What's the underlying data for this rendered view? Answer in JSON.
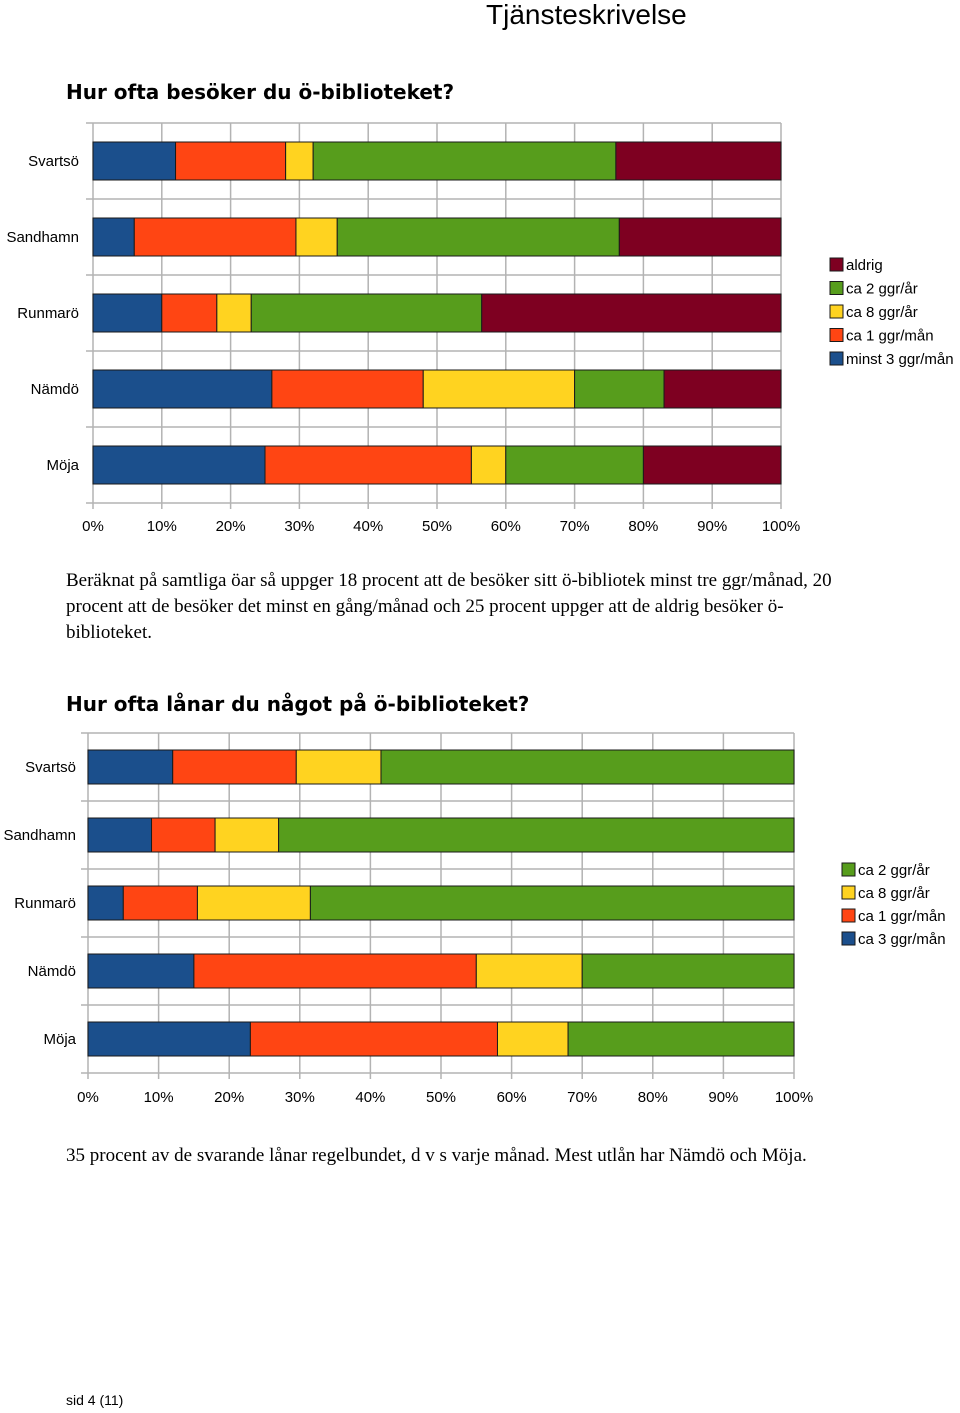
{
  "header": {
    "title": "Tjänsteskrivelse"
  },
  "section1": {
    "heading": "Hur ofta besöker du ö-biblioteket?",
    "paragraph": "Beräknat på samtliga öar så uppger 18 procent att de besöker sitt ö-bibliotek minst tre ggr/månad, 20 procent att de besöker det minst en gång/månad och 25 procent uppger att de aldrig besöker ö-biblioteket."
  },
  "section2": {
    "heading": "Hur ofta lånar du något på ö-biblioteket?",
    "paragraph": "35 procent av de svarande lånar regelbundet, d v s varje månad. Mest utlån har Nämdö och Möja."
  },
  "footer": {
    "page": "sid  4 (11)"
  },
  "chart_data": [
    {
      "type": "bar",
      "orientation": "horizontal-stacked-100",
      "categories": [
        "Svartsö",
        "Sandhamn",
        "Runmarö",
        "Nämdö",
        "Möja"
      ],
      "series": [
        {
          "name": "minst 3 ggr/mån",
          "color": "#1b4f8c",
          "values": [
            12,
            6,
            10,
            26,
            25
          ]
        },
        {
          "name": "ca 1 ggr/mån",
          "color": "#ff4513",
          "values": [
            16,
            23.5,
            8,
            22,
            30
          ]
        },
        {
          "name": "ca 8 ggr/år",
          "color": "#ffd320",
          "values": [
            4,
            6,
            5,
            22,
            5
          ]
        },
        {
          "name": "ca 2 ggr/år",
          "color": "#579d1c",
          "values": [
            44,
            41,
            33.5,
            13,
            20
          ]
        },
        {
          "name": "aldrig",
          "color": "#7e0021",
          "values": [
            24,
            23.5,
            43.5,
            17,
            20
          ]
        }
      ],
      "legend_order": [
        "aldrig",
        "ca 2 ggr/år",
        "ca 8 ggr/år",
        "ca 1 ggr/mån",
        "minst 3 ggr/mån"
      ],
      "xticks": [
        "0%",
        "10%",
        "20%",
        "30%",
        "40%",
        "50%",
        "60%",
        "70%",
        "80%",
        "90%",
        "100%"
      ],
      "xlim": [
        0,
        100
      ],
      "legend": "right",
      "grid": true
    },
    {
      "type": "bar",
      "orientation": "horizontal-stacked-100",
      "categories": [
        "Svartsö",
        "Sandhamn",
        "Runmarö",
        "Nämdö",
        "Möja"
      ],
      "series": [
        {
          "name": "ca 3 ggr/mån",
          "color": "#1b4f8c",
          "values": [
            12,
            9,
            5,
            15,
            23
          ]
        },
        {
          "name": "ca 1 ggr/mån",
          "color": "#ff4513",
          "values": [
            17.5,
            9,
            10.5,
            40,
            35
          ]
        },
        {
          "name": "ca 8 ggr/år",
          "color": "#ffd320",
          "values": [
            12,
            9,
            16,
            15,
            10
          ]
        },
        {
          "name": "ca 2 ggr/år",
          "color": "#579d1c",
          "values": [
            58.5,
            73,
            68.5,
            30,
            32
          ]
        }
      ],
      "legend_order": [
        "ca 2 ggr/år",
        "ca 8 ggr/år",
        "ca 1 ggr/mån",
        "ca 3 ggr/mån"
      ],
      "xticks": [
        "0%",
        "10%",
        "20%",
        "30%",
        "40%",
        "50%",
        "60%",
        "70%",
        "80%",
        "90%",
        "100%"
      ],
      "xlim": [
        0,
        100
      ],
      "legend": "right",
      "grid": true
    }
  ]
}
